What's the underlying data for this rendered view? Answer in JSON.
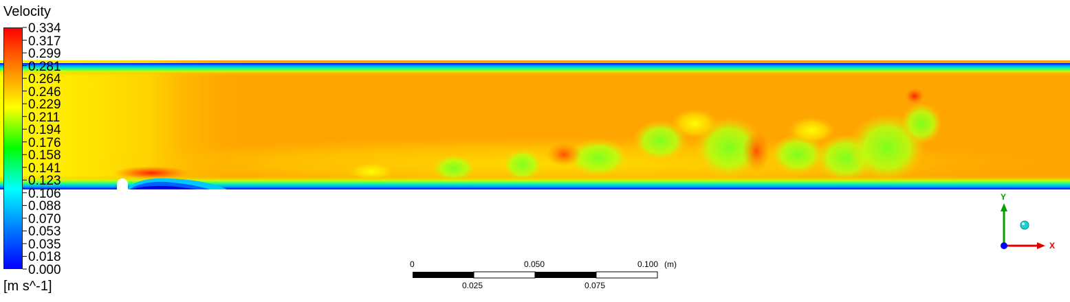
{
  "legend": {
    "title": "Velocity",
    "units": "[m s^-1]",
    "labels": [
      "0.334",
      "0.317",
      "0.299",
      "0.281",
      "0.264",
      "0.246",
      "0.229",
      "0.211",
      "0.194",
      "0.176",
      "0.158",
      "0.141",
      "0.123",
      "0.106",
      "0.088",
      "0.070",
      "0.053",
      "0.035",
      "0.018",
      "0.000"
    ],
    "colors": [
      "#ff0000",
      "#ff8000",
      "#ffff00",
      "#00ff00",
      "#00ffff",
      "#0080ff",
      "#0000ff"
    ]
  },
  "scale_bar": {
    "top_labels": [
      "0",
      "0.050",
      "0.100"
    ],
    "bottom_labels": [
      "0.025",
      "0.075"
    ],
    "unit": "(m)"
  },
  "axes": {
    "y_label": "Y",
    "x_label": "X",
    "y_color": "#00a000",
    "x_color": "#e00000",
    "z_color": "#0000ff"
  },
  "field_colors": {
    "core": "#ffa500",
    "wall": "#0000ff"
  }
}
